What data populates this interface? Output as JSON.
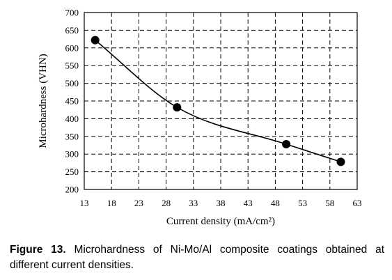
{
  "chart_data": {
    "type": "line",
    "xlabel": "Current density (mA/cm²)",
    "ylabel": "Microhardness (VHN)",
    "xlim": [
      13,
      63
    ],
    "ylim": [
      200,
      700
    ],
    "xticks": [
      "13",
      "18",
      "23",
      "28",
      "33",
      "38",
      "43",
      "48",
      "53",
      "58",
      "63"
    ],
    "yticks": [
      "200",
      "250",
      "300",
      "350",
      "400",
      "450",
      "500",
      "550",
      "600",
      "650",
      "700"
    ],
    "grid": "dashed",
    "series": [
      {
        "x": [
          15,
          30,
          50,
          60
        ],
        "y": [
          622,
          432,
          328,
          278
        ],
        "marker": "circle",
        "curve": "smooth"
      }
    ]
  },
  "caption": {
    "label": "Figure 13.",
    "text": " Microhardness of Ni-Mo/Al composite coatings obtained at different current densities."
  }
}
